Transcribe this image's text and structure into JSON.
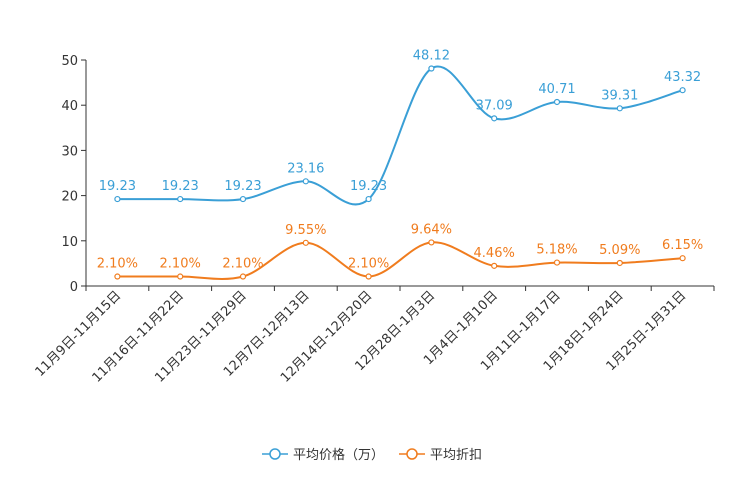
{
  "chart_data": {
    "type": "line",
    "title": "",
    "xlabel": "",
    "ylabel": "",
    "ylim": [
      0,
      50
    ],
    "yticks": [
      0,
      10,
      20,
      30,
      40,
      50
    ],
    "grid": false,
    "legend_position": "bottom-center",
    "categories": [
      "11月9日-11月15日",
      "11月16日-11月22日",
      "11月23日-11月29日",
      "12月7日-12月13日",
      "12月14日-12月20日",
      "12月28日-1月3日",
      "1月4日-1月10日",
      "1月11日-1月17日",
      "1月18日-1月24日",
      "1月25日-1月31日"
    ],
    "series": [
      {
        "name": "平均价格（万）",
        "color": "#3a9fd6",
        "values": [
          19.23,
          19.23,
          19.23,
          23.16,
          19.23,
          48.12,
          37.09,
          40.71,
          39.31,
          43.32
        ],
        "labels": [
          "19.23",
          "19.23",
          "19.23",
          "23.16",
          "19.23",
          "48.12",
          "37.09",
          "40.71",
          "39.31",
          "43.32"
        ]
      },
      {
        "name": "平均折扣",
        "color": "#f07c1e",
        "values": [
          2.1,
          2.1,
          2.1,
          9.55,
          2.1,
          9.64,
          4.46,
          5.18,
          5.09,
          6.15
        ],
        "labels": [
          "2.10%",
          "2.10%",
          "2.10%",
          "9.55%",
          "2.10%",
          "9.64%",
          "4.46%",
          "5.18%",
          "5.09%",
          "6.15%"
        ]
      }
    ]
  }
}
